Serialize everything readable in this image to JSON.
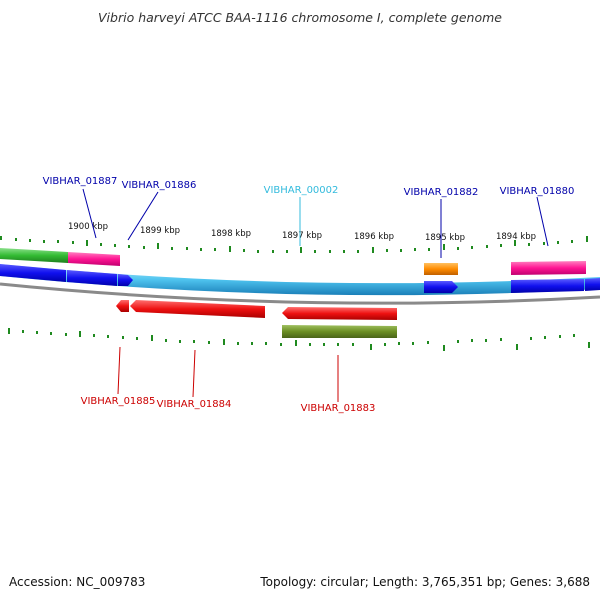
{
  "title": "Vibrio harveyi ATCC BAA-1116 chromosome I, complete genome",
  "footer": {
    "accession": "Accession: NC_009783",
    "summary": "Topology: circular; Length: 3,765,351 bp; Genes: 3,688"
  },
  "colors": {
    "backbone": "#4fc4ef",
    "backbone_edge": "#1a7fb8",
    "outer_ring": "#888888",
    "ticks": "#1f8a1f",
    "blue_gene": "#1010ee",
    "magenta_gene": "#ff1493",
    "green_gene": "#33bb33",
    "orange_gene": "#ff8c00",
    "red_gene": "#ee1111",
    "olive_gene": "#6b8e23",
    "label_blue": "#0000aa",
    "label_cyan": "#33bbdd",
    "label_red": "#cc0000"
  },
  "scale": {
    "unit": "kbp",
    "ticks": [
      {
        "label": "1900 kbp"
      },
      {
        "label": "1899 kbp"
      },
      {
        "label": "1898 kbp"
      },
      {
        "label": "1897 kbp"
      },
      {
        "label": "1896 kbp"
      },
      {
        "label": "1895 kbp"
      },
      {
        "label": "1894 kbp"
      }
    ]
  },
  "gene_labels": {
    "forward": [
      {
        "name": "VIBHAR_01887",
        "color": "#0000aa"
      },
      {
        "name": "VIBHAR_01886",
        "color": "#0000aa"
      },
      {
        "name": "VIBHAR_00002",
        "color": "#33bbdd"
      },
      {
        "name": "VIBHAR_01882",
        "color": "#0000aa"
      },
      {
        "name": "VIBHAR_01880",
        "color": "#0000aa"
      }
    ],
    "reverse": [
      {
        "name": "VIBHAR_01885",
        "color": "#cc0000"
      },
      {
        "name": "VIBHAR_01884",
        "color": "#cc0000"
      },
      {
        "name": "VIBHAR_01883",
        "color": "#cc0000"
      }
    ]
  }
}
